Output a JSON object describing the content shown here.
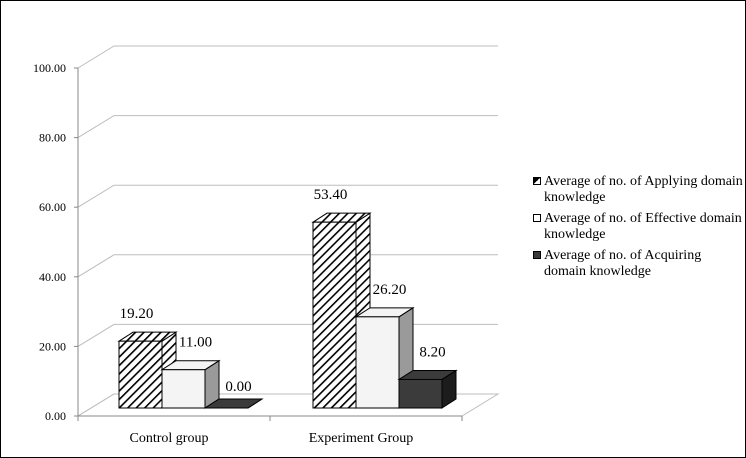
{
  "chart_data": {
    "type": "bar",
    "three_d": true,
    "categories": [
      "Control group",
      "Experiment Group"
    ],
    "series": [
      {
        "name": "Average of no. of Applying domain knowledge",
        "values": [
          19.2,
          53.4
        ],
        "labels": [
          "19.20",
          "53.40"
        ],
        "fill": "hatch",
        "color": "#ffffff",
        "side_color": "#555555"
      },
      {
        "name": "Average of no. of  Effective domain knowledge",
        "values": [
          11.0,
          26.2
        ],
        "labels": [
          "11.00",
          "26.20"
        ],
        "fill": "solid",
        "color": "#f4f4f4",
        "side_color": "#9a9a9a"
      },
      {
        "name": "Average of no. of Acquiring domain knowledge",
        "values": [
          0.0,
          8.2
        ],
        "labels": [
          "0.00",
          "8.20"
        ],
        "fill": "solid",
        "color": "#3b3b3b",
        "side_color": "#1c1c1c"
      }
    ],
    "y_ticks": [
      "0.00",
      "20.00",
      "40.00",
      "60.00",
      "80.00",
      "100.00"
    ],
    "ylim": [
      0,
      100
    ],
    "grid": true,
    "legend_position": "right",
    "title": "",
    "xlabel": "",
    "ylabel": ""
  }
}
